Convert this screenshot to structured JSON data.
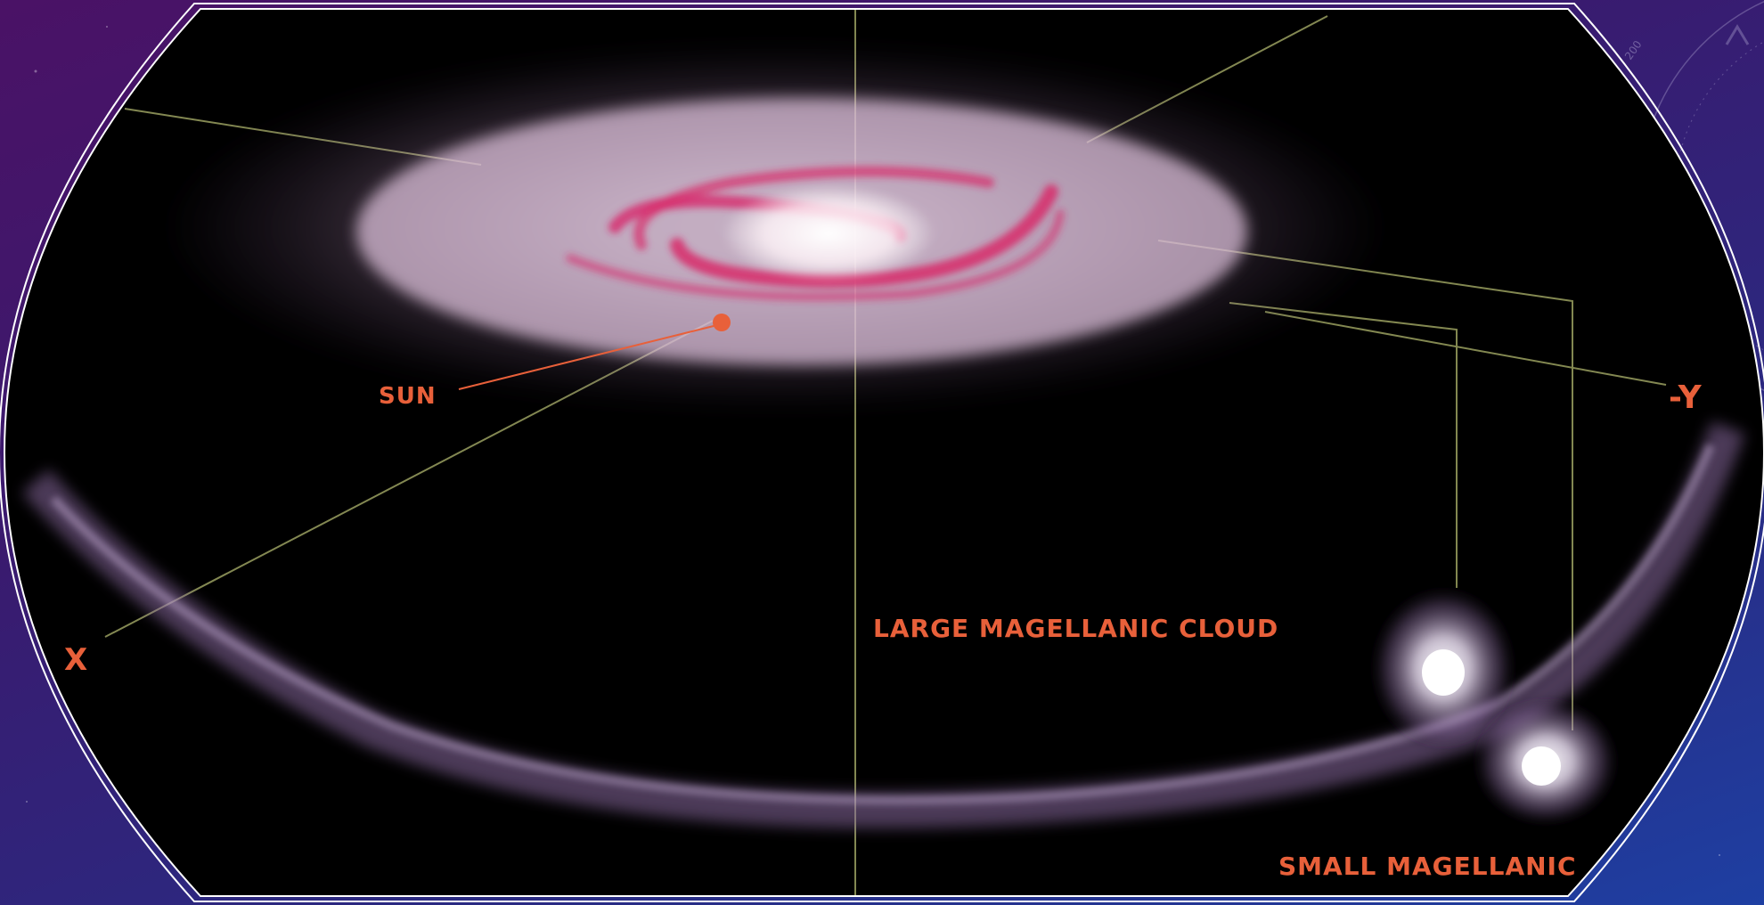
{
  "figure": {
    "labels": {
      "sun": "SUN",
      "neg_y": "-Y",
      "x": "X",
      "lmc": "LARGE MAGELLANIC CLOUD",
      "smc": "SMALL MAGELLANIC"
    },
    "colors": {
      "label": "#e8603a",
      "line": "#9aa060",
      "background_top_left": "#4a1266",
      "background_bottom_right": "#1e3fa2",
      "galaxy_core": "#ffffff",
      "galaxy_arms": "#d8286a",
      "stream": "#a080b8"
    },
    "decoration": {
      "corner_dial_text": "200"
    }
  }
}
